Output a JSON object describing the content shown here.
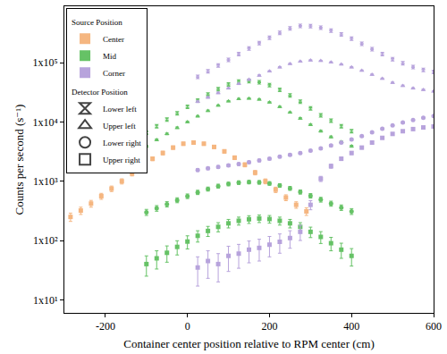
{
  "chart_data": {
    "type": "scatter",
    "x_label": "Container center position relative to RPM center (cm)",
    "y_label": "Counts per second (s⁻¹)",
    "log": "y",
    "grid": false,
    "legend": "upper left",
    "xlim": [
      -300,
      600
    ],
    "xticks": [
      -200,
      0,
      200,
      400,
      600
    ],
    "ylim": [
      6,
      900000
    ],
    "yticks": [
      {
        "value": 10,
        "label": "1x10¹"
      },
      {
        "value": 100,
        "label": "1x10²"
      },
      {
        "value": 1000,
        "label": "1x10³"
      },
      {
        "value": 10000,
        "label": "1x10⁴"
      },
      {
        "value": 100000,
        "label": "1x10⁵"
      }
    ],
    "legend_groups": [
      {
        "title": "Source Position",
        "items": [
          {
            "name": "Center",
            "color": "#f5b680"
          },
          {
            "name": "Mid",
            "color": "#66c266"
          },
          {
            "name": "Corner",
            "color": "#b7a3dc"
          }
        ]
      },
      {
        "title": "Detector Position",
        "items": [
          {
            "name": "Lower left",
            "marker": "hourglass"
          },
          {
            "name": "Upper left",
            "marker": "triangle-up"
          },
          {
            "name": "Lower right",
            "marker": "circle"
          },
          {
            "name": "Upper right",
            "marker": "square"
          }
        ]
      }
    ],
    "series": [
      {
        "source": "Center",
        "detector": "Upper right",
        "x": [
          -285,
          -260,
          -235,
          -210,
          -185,
          -160,
          -135,
          -110,
          -85,
          -60,
          -35,
          -10,
          15,
          40,
          65,
          90,
          115,
          140,
          165,
          190,
          215,
          240,
          265,
          290
        ],
        "values": [
          250,
          320,
          420,
          560,
          750,
          1000,
          1350,
          1800,
          2400,
          3000,
          3700,
          4300,
          4500,
          4300,
          3800,
          3200,
          2500,
          1900,
          1400,
          1000,
          720,
          530,
          400,
          310
        ],
        "errors": [
          40,
          45,
          55,
          65,
          80,
          100,
          120,
          150,
          180,
          210,
          240,
          260,
          270,
          260,
          240,
          210,
          180,
          150,
          120,
          95,
          75,
          60,
          50,
          45
        ]
      },
      {
        "source": "Mid",
        "detector": "Lower left",
        "x": [
          -100,
          -75,
          -50,
          -25,
          0,
          25,
          50,
          75,
          100,
          125,
          150,
          175,
          200,
          225,
          250,
          275,
          300,
          325,
          350,
          375,
          400
        ],
        "values": [
          6600,
          8500,
          11000,
          14000,
          18000,
          23000,
          29000,
          36000,
          43000,
          48000,
          49000,
          47000,
          42000,
          35000,
          28000,
          22000,
          17000,
          13000,
          10500,
          8500,
          7000
        ],
        "errors": [
          250,
          300,
          350,
          420,
          500,
          600,
          700,
          800,
          900,
          950,
          950,
          920,
          850,
          750,
          650,
          550,
          450,
          380,
          320,
          280,
          250
        ]
      },
      {
        "source": "Mid",
        "detector": "Upper left",
        "x": [
          -100,
          -75,
          -50,
          -25,
          0,
          25,
          50,
          75,
          100,
          125,
          150,
          175,
          200,
          225,
          250,
          275,
          300,
          325,
          350,
          375,
          400
        ],
        "values": [
          3900,
          5000,
          6300,
          8000,
          10000,
          12500,
          15500,
          19000,
          22500,
          24500,
          25000,
          24000,
          21500,
          18000,
          14500,
          11500,
          9000,
          7000,
          5600,
          4600,
          3900
        ],
        "errors": [
          150,
          180,
          210,
          250,
          300,
          350,
          420,
          480,
          540,
          570,
          580,
          560,
          520,
          460,
          400,
          340,
          290,
          240,
          200,
          170,
          150
        ]
      },
      {
        "source": "Mid",
        "detector": "Lower right",
        "x": [
          -100,
          -75,
          -50,
          -25,
          0,
          25,
          50,
          75,
          100,
          125,
          150,
          175,
          200,
          225,
          250,
          275,
          300,
          325,
          350,
          375,
          400
        ],
        "values": [
          300,
          350,
          410,
          480,
          560,
          650,
          740,
          830,
          900,
          950,
          970,
          960,
          920,
          850,
          760,
          660,
          570,
          490,
          420,
          360,
          310
        ],
        "errors": [
          35,
          38,
          42,
          46,
          50,
          54,
          58,
          62,
          64,
          66,
          66,
          66,
          64,
          61,
          57,
          53,
          49,
          45,
          41,
          38,
          35
        ]
      },
      {
        "source": "Mid",
        "detector": "Upper right",
        "x": [
          -100,
          -75,
          -50,
          -25,
          0,
          25,
          50,
          75,
          100,
          125,
          150,
          175,
          200,
          225,
          250,
          275,
          300,
          325,
          350,
          375,
          400
        ],
        "values": [
          40,
          50,
          62,
          78,
          96,
          120,
          145,
          170,
          195,
          215,
          228,
          235,
          230,
          215,
          195,
          170,
          140,
          115,
          90,
          70,
          55
        ],
        "errors": [
          15,
          17,
          19,
          21,
          24,
          26,
          28,
          30,
          32,
          33,
          34,
          34,
          34,
          33,
          32,
          30,
          28,
          26,
          23,
          20,
          18
        ]
      },
      {
        "source": "Corner",
        "detector": "Lower left",
        "x": [
          25,
          50,
          75,
          100,
          125,
          150,
          175,
          200,
          225,
          250,
          275,
          300,
          325,
          350,
          375,
          400,
          425,
          450,
          475,
          500,
          525,
          550,
          575,
          600
        ],
        "values": [
          58000,
          72000,
          90000,
          112000,
          140000,
          175000,
          215000,
          265000,
          320000,
          380000,
          420000,
          415000,
          390000,
          350000,
          300000,
          255000,
          210000,
          170000,
          140000,
          115000,
          98000,
          85000,
          76000,
          70000
        ],
        "errors": [
          1500,
          1800,
          2100,
          2500,
          3000,
          3500,
          4200,
          5000,
          5800,
          6500,
          7000,
          7000,
          6700,
          6200,
          5500,
          4900,
          4200,
          3600,
          3100,
          2700,
          2300,
          2000,
          1800,
          1700
        ]
      },
      {
        "source": "Corner",
        "detector": "Upper left",
        "x": [
          25,
          50,
          75,
          100,
          125,
          150,
          175,
          200,
          225,
          250,
          275,
          300,
          325,
          350,
          375,
          400,
          425,
          450,
          475,
          500,
          525,
          550,
          575,
          600
        ],
        "values": [
          22000,
          26000,
          31000,
          37000,
          44000,
          52000,
          61000,
          72000,
          84000,
          96000,
          105000,
          110000,
          108000,
          102000,
          94000,
          84000,
          74000,
          63000,
          54000,
          46000,
          41000,
          37000,
          35000,
          33000
        ],
        "errors": [
          700,
          800,
          900,
          1000,
          1100,
          1300,
          1500,
          1700,
          1900,
          2100,
          2200,
          2300,
          2300,
          2200,
          2100,
          1900,
          1700,
          1500,
          1300,
          1200,
          1100,
          1000,
          950,
          900
        ]
      },
      {
        "source": "Corner",
        "detector": "Lower right",
        "x": [
          25,
          50,
          75,
          100,
          125,
          150,
          175,
          200,
          225,
          250,
          275,
          300,
          325,
          350,
          375,
          400,
          425,
          450,
          475,
          500,
          525,
          550,
          575,
          600
        ],
        "values": [
          1550,
          1650,
          1750,
          1850,
          1950,
          2100,
          2250,
          2400,
          2600,
          2800,
          3000,
          3300,
          3600,
          4000,
          4500,
          5100,
          5800,
          6700,
          7700,
          8800,
          9800,
          10800,
          11800,
          12600
        ],
        "errors": [
          80,
          85,
          90,
          95,
          100,
          105,
          110,
          115,
          120,
          125,
          130,
          135,
          140,
          150,
          160,
          170,
          180,
          190,
          200,
          210,
          220,
          230,
          240,
          250
        ]
      },
      {
        "source": "Corner",
        "detector": "Upper right",
        "x": [
          25,
          50,
          75,
          100,
          125,
          150,
          175,
          200,
          225,
          250,
          275,
          300,
          325,
          350,
          375,
          400,
          425,
          450,
          475,
          500,
          525,
          550,
          575,
          600
        ],
        "values": [
          35,
          45,
          40,
          55,
          60,
          70,
          75,
          85,
          95,
          110,
          140,
          400,
          1100,
          1800,
          2400,
          3000,
          3700,
          4500,
          5400,
          6300,
          7000,
          7600,
          8100,
          8400
        ],
        "errors": [
          18,
          22,
          20,
          25,
          26,
          28,
          30,
          32,
          34,
          36,
          40,
          70,
          110,
          140,
          160,
          180,
          200,
          220,
          240,
          260,
          270,
          280,
          290,
          300
        ]
      }
    ]
  }
}
